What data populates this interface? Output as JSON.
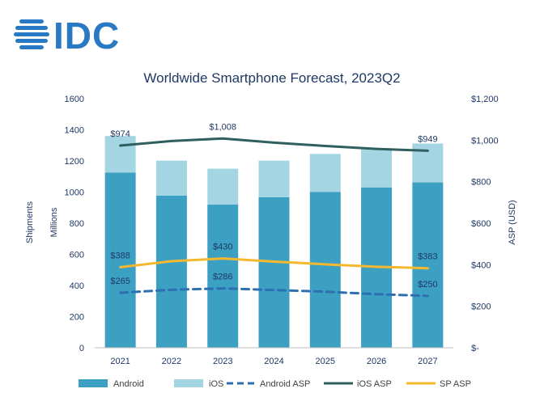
{
  "logo": {
    "text": "IDC",
    "color": "#2a79c4"
  },
  "chart_data": {
    "type": "bar",
    "title": "Worldwide Smartphone Forecast, 2023Q2",
    "xlabel": "",
    "ylabel": "Shipments",
    "ylabel_units": "Millions",
    "y2label": "ASP (USD)",
    "stacked": true,
    "categories": [
      "2021",
      "2022",
      "2023",
      "2024",
      "2025",
      "2026",
      "2027"
    ],
    "ylim": [
      0,
      1600
    ],
    "yticks": [
      "0",
      "200",
      "400",
      "600",
      "800",
      "1000",
      "1200",
      "1400",
      "1600"
    ],
    "y2lim": [
      0,
      1200
    ],
    "y2ticks": [
      "$-",
      "$200",
      "$400",
      "$600",
      "$800",
      "$1,000",
      "$1,200"
    ],
    "grid": false,
    "legend_position": "bottom",
    "series": [
      {
        "name": "Android",
        "type": "bar",
        "axis": "left",
        "color": "#3ba0c2",
        "values": [
          1125,
          977,
          920,
          967,
          1000,
          1030,
          1062
        ]
      },
      {
        "name": "iOS",
        "type": "bar",
        "axis": "left",
        "color": "#a3d5e2",
        "values": [
          235,
          225,
          230,
          235,
          245,
          250,
          250
        ]
      },
      {
        "name": "Android ASP",
        "type": "line",
        "axis": "right",
        "color": "#2e6fb1",
        "dash": true,
        "values": [
          265,
          279,
          286,
          278,
          270,
          258,
          250
        ]
      },
      {
        "name": "iOS ASP",
        "type": "line",
        "axis": "right",
        "color": "#2f5f5e",
        "values": [
          974,
          996,
          1008,
          988,
          972,
          958,
          949
        ]
      },
      {
        "name": "SP ASP",
        "type": "line",
        "axis": "right",
        "color": "#f5b82e",
        "values": [
          388,
          417,
          430,
          415,
          402,
          390,
          383
        ]
      }
    ],
    "annotations": [
      {
        "series": "iOS ASP",
        "index": 0,
        "text": "$974"
      },
      {
        "series": "iOS ASP",
        "index": 2,
        "text": "$1,008"
      },
      {
        "series": "iOS ASP",
        "index": 6,
        "text": "$949"
      },
      {
        "series": "SP ASP",
        "index": 0,
        "text": "$388"
      },
      {
        "series": "SP ASP",
        "index": 2,
        "text": "$430"
      },
      {
        "series": "SP ASP",
        "index": 6,
        "text": "$383"
      },
      {
        "series": "Android ASP",
        "index": 0,
        "text": "$265"
      },
      {
        "series": "Android ASP",
        "index": 2,
        "text": "$286"
      },
      {
        "series": "Android ASP",
        "index": 6,
        "text": "$250"
      }
    ]
  }
}
